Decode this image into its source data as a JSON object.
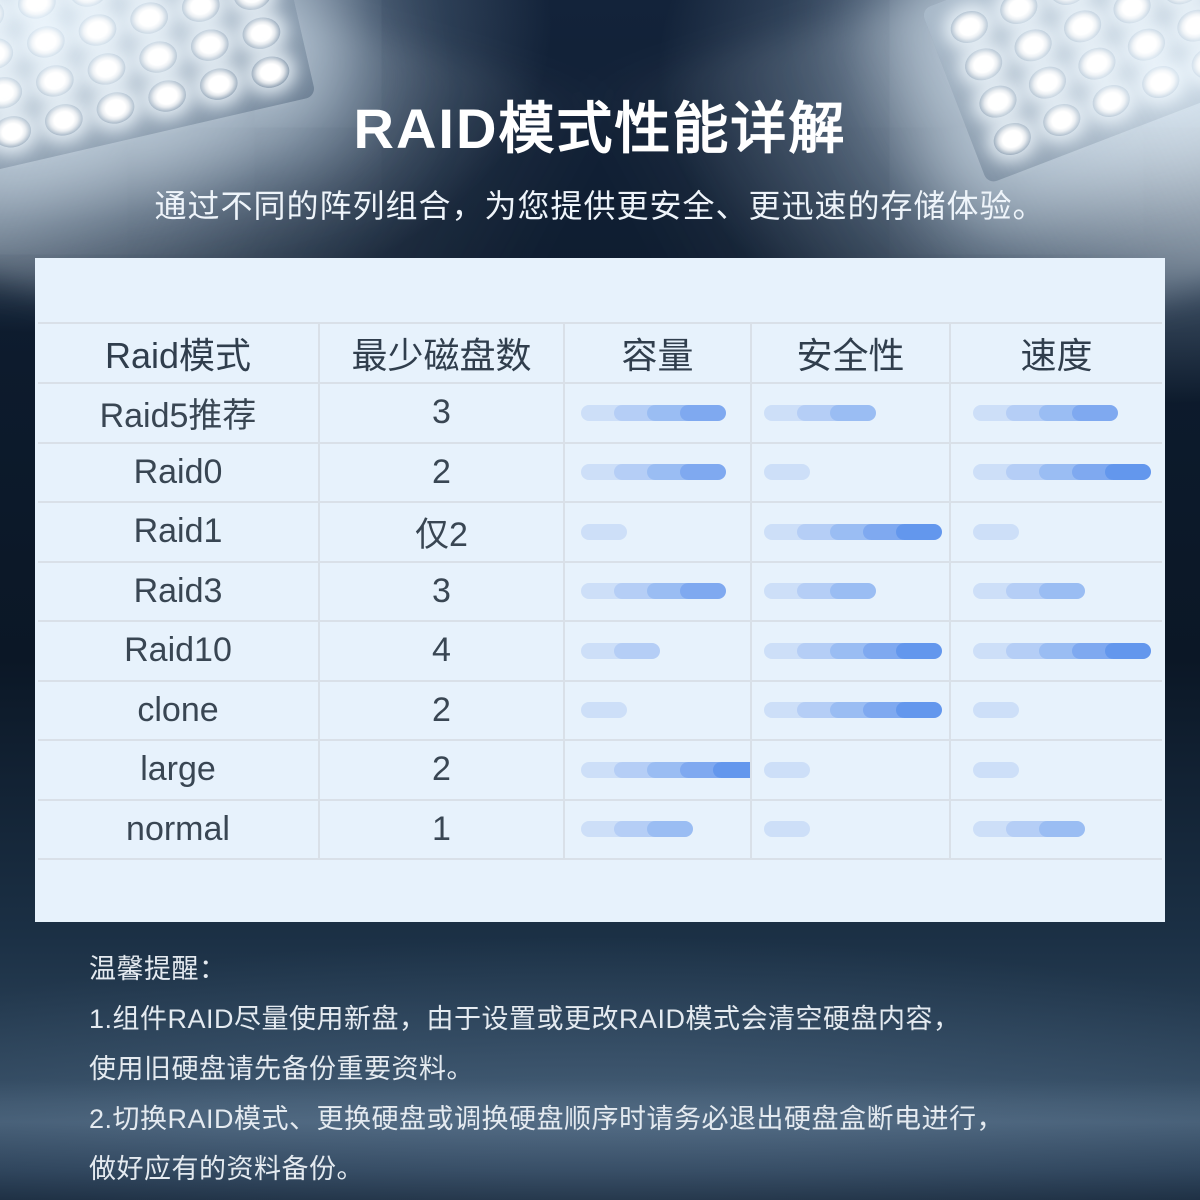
{
  "page": {
    "title": "RAID模式性能详解",
    "subtitle": "通过不同的阵列组合，为您提供更安全、更迅速的存储体验。"
  },
  "chart_data": {
    "type": "table",
    "title": "RAID模式性能详解",
    "columns": [
      "Raid模式",
      "最少磁盘数",
      "容量",
      "安全性",
      "速度"
    ],
    "rating_max": 5,
    "rows": [
      {
        "mode": "Raid5推荐",
        "min_disks": "3",
        "capacity": 4,
        "safety": 3,
        "speed": 4
      },
      {
        "mode": "Raid0",
        "min_disks": "2",
        "capacity": 4,
        "safety": 1,
        "speed": 5
      },
      {
        "mode": "Raid1",
        "min_disks": "仅2",
        "capacity": 1,
        "safety": 5,
        "speed": 1
      },
      {
        "mode": "Raid3",
        "min_disks": "3",
        "capacity": 4,
        "safety": 3,
        "speed": 3
      },
      {
        "mode": "Raid10",
        "min_disks": "4",
        "capacity": 2,
        "safety": 5,
        "speed": 5
      },
      {
        "mode": "clone",
        "min_disks": "2",
        "capacity": 1,
        "safety": 5,
        "speed": 1
      },
      {
        "mode": "large",
        "min_disks": "2",
        "capacity": 5,
        "safety": 1,
        "speed": 1
      },
      {
        "mode": "normal",
        "min_disks": "1",
        "capacity": 3,
        "safety": 1,
        "speed": 3
      }
    ]
  },
  "style_tokens": {
    "rating_segment_colors": [
      "#cddff8",
      "#b5cef6",
      "#9abdf3",
      "#7fa9f0",
      "#6397ed"
    ],
    "panel_background": "#e7f2fc",
    "grid_line_color": "#d9e0e8"
  },
  "notes": {
    "heading": "温馨提醒：",
    "lines": [
      "1.组件RAID尽量使用新盘，由于设置或更改RAID模式会清空硬盘内容，",
      "使用旧硬盘请先备份重要资料。",
      "2.切换RAID模式、更换硬盘或调换硬盘顺序时请务必退出硬盘盒断电进行，",
      "做好应有的资料备份。"
    ]
  }
}
